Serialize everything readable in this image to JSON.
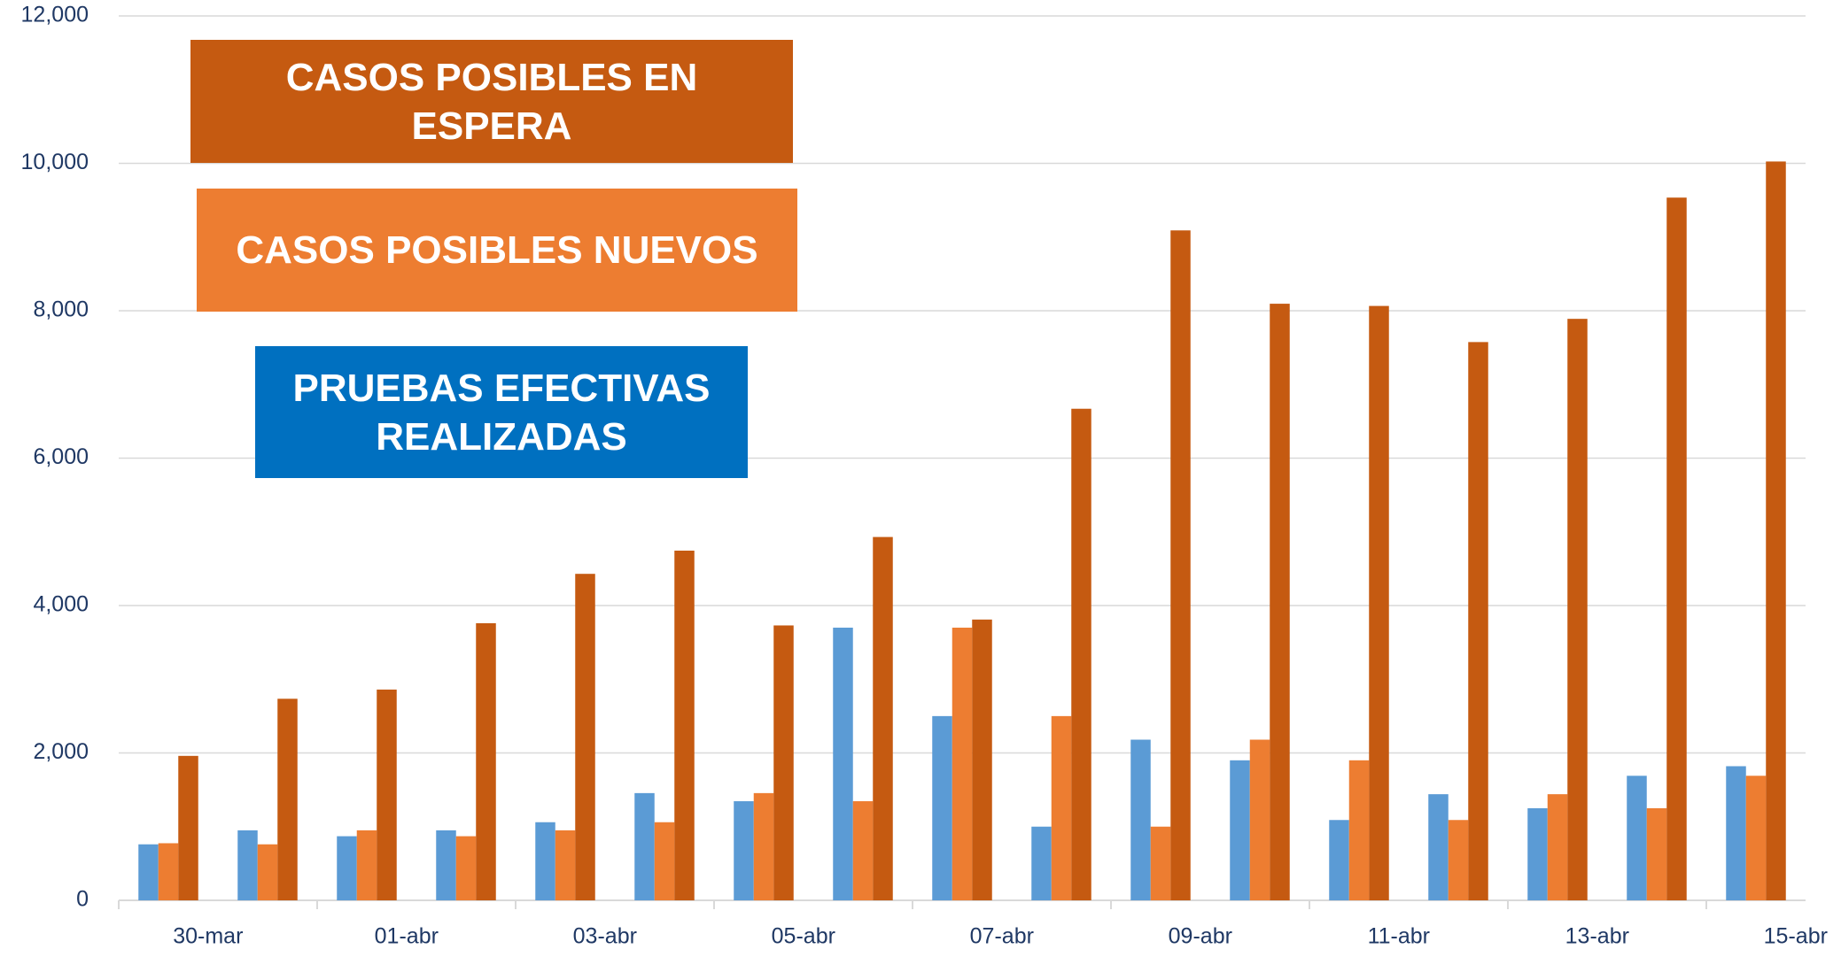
{
  "chart_data": {
    "type": "bar",
    "categories": [
      "30-mar",
      null,
      "01-abr",
      null,
      "03-abr",
      null,
      "05-abr",
      null,
      "07-abr",
      null,
      "09-abr",
      null,
      "11-abr",
      null,
      "13-abr",
      null,
      "15-abr"
    ],
    "series": [
      {
        "name": "PRUEBAS EFECTIVAS REALIZADAS",
        "color": "#5b9bd5",
        "values": [
          760,
          950,
          870,
          950,
          1060,
          1455,
          1345,
          3700,
          2500,
          1000,
          2180,
          1900,
          1090,
          1440,
          1250,
          1690,
          1820
        ]
      },
      {
        "name": "CASOS POSIBLES NUEVOS",
        "color": "#ed7d31",
        "values": [
          775,
          760,
          950,
          870,
          950,
          1060,
          1455,
          1345,
          3700,
          2500,
          1000,
          2180,
          1900,
          1090,
          1440,
          1250,
          1690
        ]
      },
      {
        "name": "CASOS POSIBLES EN ESPERA",
        "color": "#c55a11",
        "values": [
          1960,
          2735,
          2860,
          3760,
          4430,
          4745,
          3730,
          4930,
          3810,
          6670,
          9090,
          8095,
          8065,
          7575,
          7890,
          9535,
          10025
        ]
      }
    ],
    "ylim": [
      0,
      12000
    ],
    "yticks": [
      0,
      {
        "value": 2000,
        "label": "2,000"
      },
      {
        "value": 4000,
        "label": "4,000"
      },
      {
        "value": 6000,
        "label": "6,000"
      },
      {
        "value": 8000,
        "label": "8,000"
      },
      {
        "value": 10000,
        "label": "10,000"
      },
      {
        "value": 12000,
        "label": "12,000"
      }
    ],
    "grid": true
  }
}
